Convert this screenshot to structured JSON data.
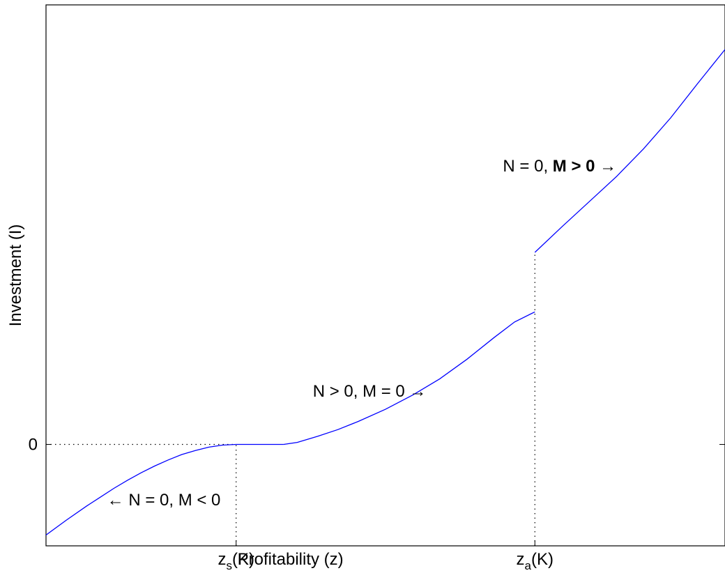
{
  "chart_data": {
    "type": "line",
    "xlabel": "Profitability (z)",
    "ylabel": "Investment (I)",
    "xlim": [
      0,
      100
    ],
    "ylim": [
      -15,
      65
    ],
    "x_ticks": [
      {
        "value": 28,
        "main": "z",
        "sub": "s",
        "suffix": "(K)"
      },
      {
        "value": 72,
        "main": "z",
        "sub": "a",
        "suffix": "(K)"
      }
    ],
    "y_ticks": [
      {
        "value": 0,
        "label": "0"
      }
    ],
    "reference_lines": [
      {
        "orientation": "horizontal",
        "y": 0,
        "x_range": [
          0,
          28
        ],
        "style": "dotted"
      },
      {
        "orientation": "vertical",
        "x": 28,
        "y_range": [
          -15,
          0
        ],
        "style": "dotted"
      },
      {
        "orientation": "vertical",
        "x": 72,
        "y_range": [
          -15,
          28.4
        ],
        "style": "dotted"
      }
    ],
    "series": [
      {
        "color": "#0000ff",
        "segments": [
          {
            "points": [
              [
                0,
                -13.4
              ],
              [
                3,
                -11.2
              ],
              [
                6,
                -9.1
              ],
              [
                8,
                -7.8
              ],
              [
                10,
                -6.5
              ],
              [
                12,
                -5.3
              ],
              [
                14,
                -4.2
              ],
              [
                16,
                -3.2
              ],
              [
                18,
                -2.3
              ],
              [
                20,
                -1.5
              ],
              [
                22,
                -0.9
              ],
              [
                24,
                -0.4
              ],
              [
                26,
                -0.1
              ],
              [
                28,
                0
              ]
            ]
          },
          {
            "points": [
              [
                28,
                0
              ],
              [
                35,
                0
              ]
            ]
          },
          {
            "points": [
              [
                35,
                0
              ],
              [
                37,
                0.3
              ],
              [
                40,
                1.2
              ],
              [
                43,
                2.2
              ],
              [
                46,
                3.4
              ],
              [
                50,
                5.2
              ],
              [
                54,
                7.3
              ],
              [
                58,
                9.7
              ],
              [
                62,
                12.6
              ],
              [
                66,
                15.8
              ],
              [
                69,
                18.1
              ],
              [
                72,
                19.6
              ]
            ]
          },
          {
            "points": [
              [
                72,
                28.4
              ],
              [
                76,
                32.2
              ],
              [
                80,
                35.9
              ],
              [
                84,
                39.6
              ],
              [
                88,
                43.7
              ],
              [
                92,
                48.3
              ],
              [
                96,
                53.4
              ],
              [
                100,
                58.4
              ]
            ]
          }
        ]
      }
    ],
    "annotations": [
      {
        "id": "n0-mneg",
        "parts": [
          {
            "text": "← N = 0, M < 0",
            "bold": false
          }
        ],
        "anchor_x": 9,
        "anchor_y": -8.2,
        "align": "start"
      },
      {
        "id": "npos-m0",
        "parts": [
          {
            "text": "N > 0, M = 0 →",
            "bold": false
          }
        ],
        "anchor_x": 56,
        "anchor_y": 7.9,
        "align": "end"
      },
      {
        "id": "n0-mpos",
        "parts": [
          {
            "text": "N = 0, ",
            "bold": false
          },
          {
            "text": "M > 0",
            "bold": true
          },
          {
            "text": " →",
            "bold": false
          }
        ],
        "anchor_x": 84,
        "anchor_y": 41.2,
        "align": "end"
      }
    ]
  }
}
